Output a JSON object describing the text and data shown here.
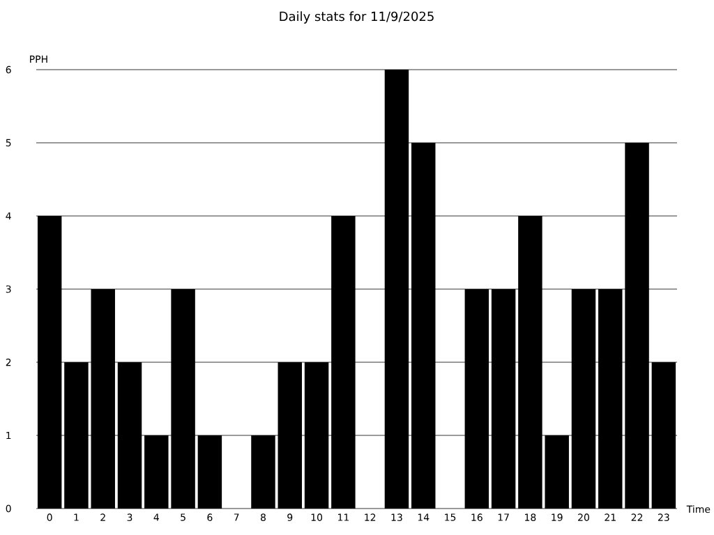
{
  "chart_data": {
    "type": "bar",
    "title": "Daily stats for 11/9/2025",
    "xlabel": "Time",
    "ylabel": "PPH",
    "categories": [
      "0",
      "1",
      "2",
      "3",
      "4",
      "5",
      "6",
      "7",
      "8",
      "9",
      "10",
      "11",
      "12",
      "13",
      "14",
      "15",
      "16",
      "17",
      "18",
      "19",
      "20",
      "21",
      "22",
      "23"
    ],
    "values": [
      4,
      2,
      3,
      2,
      1,
      3,
      1,
      0,
      1,
      2,
      2,
      4,
      0,
      6,
      5,
      0,
      3,
      3,
      4,
      1,
      3,
      3,
      5,
      2
    ],
    "color": "#000000",
    "ylim": [
      0,
      6
    ],
    "yticks": [
      0,
      1,
      2,
      3,
      4,
      5,
      6
    ],
    "grid": "y"
  }
}
